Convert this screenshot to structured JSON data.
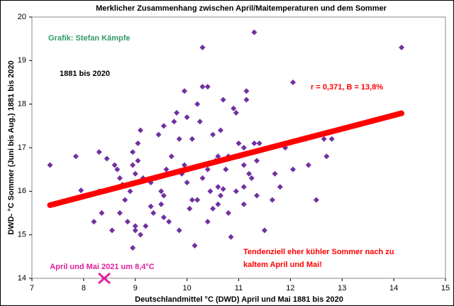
{
  "chart_data": {
    "type": "scatter",
    "title": "Merklicher  Zusammenhang zwischen April/Maitemperaturen  und dem Sommer",
    "credit": "Grafik: Stefan Kämpfe",
    "period": "1881 bis 2020",
    "stats": "r = 0,371, B = 13,8%",
    "annotation_lines": [
      "Tendenziell eher kühler Sommer nach zu",
      "kaltem April und Mai!"
    ],
    "x_label": "Deutschlandmittel °C (DWD) April und Mai 1881 bis 2020",
    "y_label": "DWD- °C Sommer (Juni bis Aug.) 1881 bis 2020",
    "xlim": [
      7,
      15
    ],
    "xticks": [
      7,
      8,
      9,
      10,
      11,
      12,
      13,
      14,
      15
    ],
    "ylim": [
      14,
      20
    ],
    "yticks": [
      14,
      15,
      16,
      17,
      18,
      19,
      20
    ],
    "series": [
      {
        "color": "#7030a0",
        "x": [
          7.35,
          7.85,
          8.2,
          8.3,
          8.35,
          8.3,
          8.45,
          8.55,
          8.6,
          8.65,
          8.7,
          8.7,
          8.75,
          8.8,
          8.85,
          8.9,
          8.95,
          9.0,
          9.0,
          9.05,
          9.1,
          9.1,
          9.15,
          9.2,
          8.95,
          9.0,
          9.05,
          8.95,
          9.3,
          9.35,
          9.4,
          9.45,
          9.5,
          9.55,
          9.5,
          9.55,
          9.6,
          9.65,
          9.7,
          9.75,
          9.8,
          9.85,
          9.85,
          9.9,
          9.95,
          9.95,
          10.0,
          10.0,
          10.05,
          10.1,
          10.1,
          10.15,
          10.2,
          10.2,
          10.25,
          10.3,
          10.3,
          10.3,
          10.4,
          10.4,
          10.4,
          10.45,
          10.5,
          10.5,
          10.55,
          10.6,
          10.6,
          10.6,
          10.65,
          10.65,
          10.7,
          10.7,
          10.75,
          10.8,
          10.8,
          10.85,
          10.9,
          10.95,
          10.95,
          11.0,
          11.0,
          11.1,
          11.1,
          11.1,
          11.1,
          11.15,
          11.15,
          11.2,
          11.25,
          11.3,
          11.3,
          11.35,
          11.35,
          11.4,
          11.5,
          11.6,
          11.65,
          11.7,
          11.8,
          11.9,
          12.05,
          12.05,
          12.3,
          12.35,
          12.5,
          12.65,
          12.7,
          12.8,
          14.15,
          9.55,
          9.3,
          7.95
        ],
        "values": [
          16.6,
          16.8,
          15.3,
          16.9,
          15.5,
          16.0,
          16.75,
          15.1,
          16.6,
          16.5,
          16.3,
          15.5,
          16.15,
          15.8,
          15.3,
          16.0,
          14.7,
          15.2,
          15.1,
          17.1,
          17.4,
          15.0,
          16.3,
          15.2,
          16.9,
          16.4,
          16.7,
          16.6,
          16.2,
          15.5,
          16.3,
          17.3,
          15.7,
          17.5,
          16.0,
          15.9,
          16.5,
          15.3,
          16.8,
          17.6,
          17.8,
          17.2,
          15.1,
          16.4,
          16.6,
          18.3,
          16.2,
          17.7,
          15.6,
          15.8,
          17.2,
          14.75,
          15.8,
          18.0,
          17.6,
          18.4,
          16.3,
          19.3,
          18.4,
          15.3,
          16.5,
          16.0,
          17.3,
          15.6,
          16.7,
          16.8,
          16.1,
          15.7,
          15.9,
          17.4,
          16.05,
          18.1,
          16.5,
          15.5,
          16.8,
          14.95,
          17.9,
          16.0,
          17.8,
          17.1,
          16.8,
          17.0,
          16.6,
          16.1,
          15.7,
          18.3,
          18.1,
          16.4,
          16.3,
          19.65,
          17.1,
          15.9,
          16.7,
          17.1,
          15.1,
          17.0,
          15.8,
          16.4,
          16.1,
          17.0,
          18.5,
          16.5,
          17.2,
          16.6,
          15.8,
          17.2,
          16.8,
          17.2,
          19.3,
          15.4,
          15.65,
          16.02
        ]
      }
    ],
    "trendline": {
      "color": "#ff0000",
      "x": [
        7.35,
        14.15
      ],
      "values": [
        15.68,
        17.79
      ]
    },
    "highlight": {
      "label": "April und Mai 2021 um 8,4°C",
      "color": "#e020a0",
      "x": 8.4,
      "values": 14.0
    }
  }
}
